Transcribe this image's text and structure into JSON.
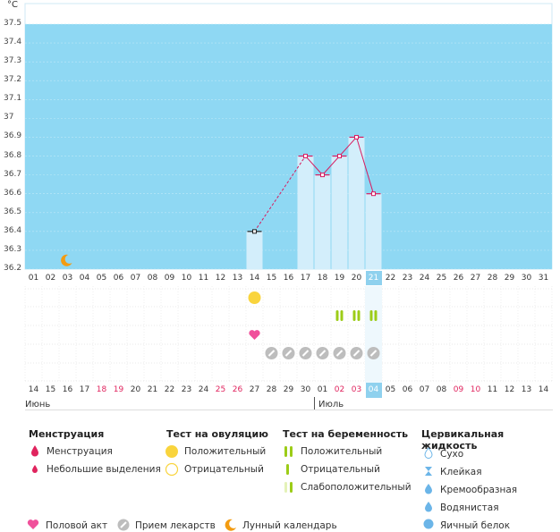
{
  "chart_data": {
    "type": "bar",
    "unit_label": "°C",
    "y_ticks": [
      "37.5",
      "37.4",
      "37.3",
      "37.2",
      "37.1",
      "37",
      "36.9",
      "36.8",
      "36.7",
      "36.6",
      "36.5",
      "36.4",
      "36.3",
      "36.2"
    ],
    "ylim": [
      36.2,
      37.5
    ],
    "days": [
      "01",
      "02",
      "03",
      "04",
      "05",
      "06",
      "07",
      "08",
      "09",
      "10",
      "11",
      "12",
      "13",
      "14",
      "15",
      "16",
      "17",
      "18",
      "19",
      "20",
      "21",
      "22",
      "23",
      "24",
      "25",
      "26",
      "27",
      "28",
      "29",
      "30",
      "31"
    ],
    "highlight_day": "21",
    "temperatures": [
      {
        "day": "14",
        "value": 36.4
      },
      {
        "day": "17",
        "value": 36.8
      },
      {
        "day": "18",
        "value": 36.7
      },
      {
        "day": "19",
        "value": 36.8
      },
      {
        "day": "20",
        "value": 36.9
      },
      {
        "day": "21",
        "value": 36.6
      }
    ],
    "moon_day": "03",
    "ovulation_positive_day": "14",
    "pregnancy_positive_days": [
      "19",
      "20",
      "21"
    ],
    "intercourse_day": "14",
    "medication_days": [
      "15",
      "16",
      "17",
      "18",
      "19",
      "20",
      "21"
    ],
    "cycle_days": [
      "14",
      "15",
      "16",
      "17",
      "18",
      "19",
      "20",
      "21",
      "22",
      "23",
      "24",
      "25",
      "26",
      "27",
      "28",
      "29",
      "30",
      "01",
      "02",
      "03",
      "04",
      "05",
      "06",
      "07",
      "08",
      "09",
      "10",
      "11",
      "12",
      "13",
      "14"
    ],
    "cycle_red_days": [
      "18",
      "19",
      "25",
      "26",
      "02",
      "03",
      "09",
      "10"
    ],
    "cycle_highlight_index": 20,
    "month_left": "Июнь",
    "month_right": "Июль"
  },
  "legend": {
    "menstruation": {
      "title": "Менструация",
      "items": [
        "Менструация",
        "Небольшие выделения"
      ]
    },
    "ovulation": {
      "title": "Тест на овуляцию",
      "items": [
        "Положительный",
        "Отрицательный"
      ]
    },
    "pregnancy": {
      "title": "Тест на беременность",
      "items": [
        "Положительный",
        "Отрицательный",
        "Слабоположительный"
      ]
    },
    "cervical": {
      "title": "Цервикальная жидкость",
      "items": [
        "Сухо",
        "Клейкая",
        "Кремообразная",
        "Водянистая",
        "Яичный белок"
      ]
    },
    "bottom": [
      "Половой акт",
      "Прием лекарств",
      "Лунный календарь"
    ]
  },
  "colors": {
    "plot_bg": "#8fd8f3",
    "bar": "#d3eefb",
    "line": "#d81b60",
    "ovulation": "#f9d43d",
    "pregnancy": "#9ccc17",
    "heart": "#f0509b",
    "pill": "#bdbdbd",
    "moon": "#f39c12",
    "menstruation": "#e0245e",
    "cervical": "#6bb5e8"
  }
}
